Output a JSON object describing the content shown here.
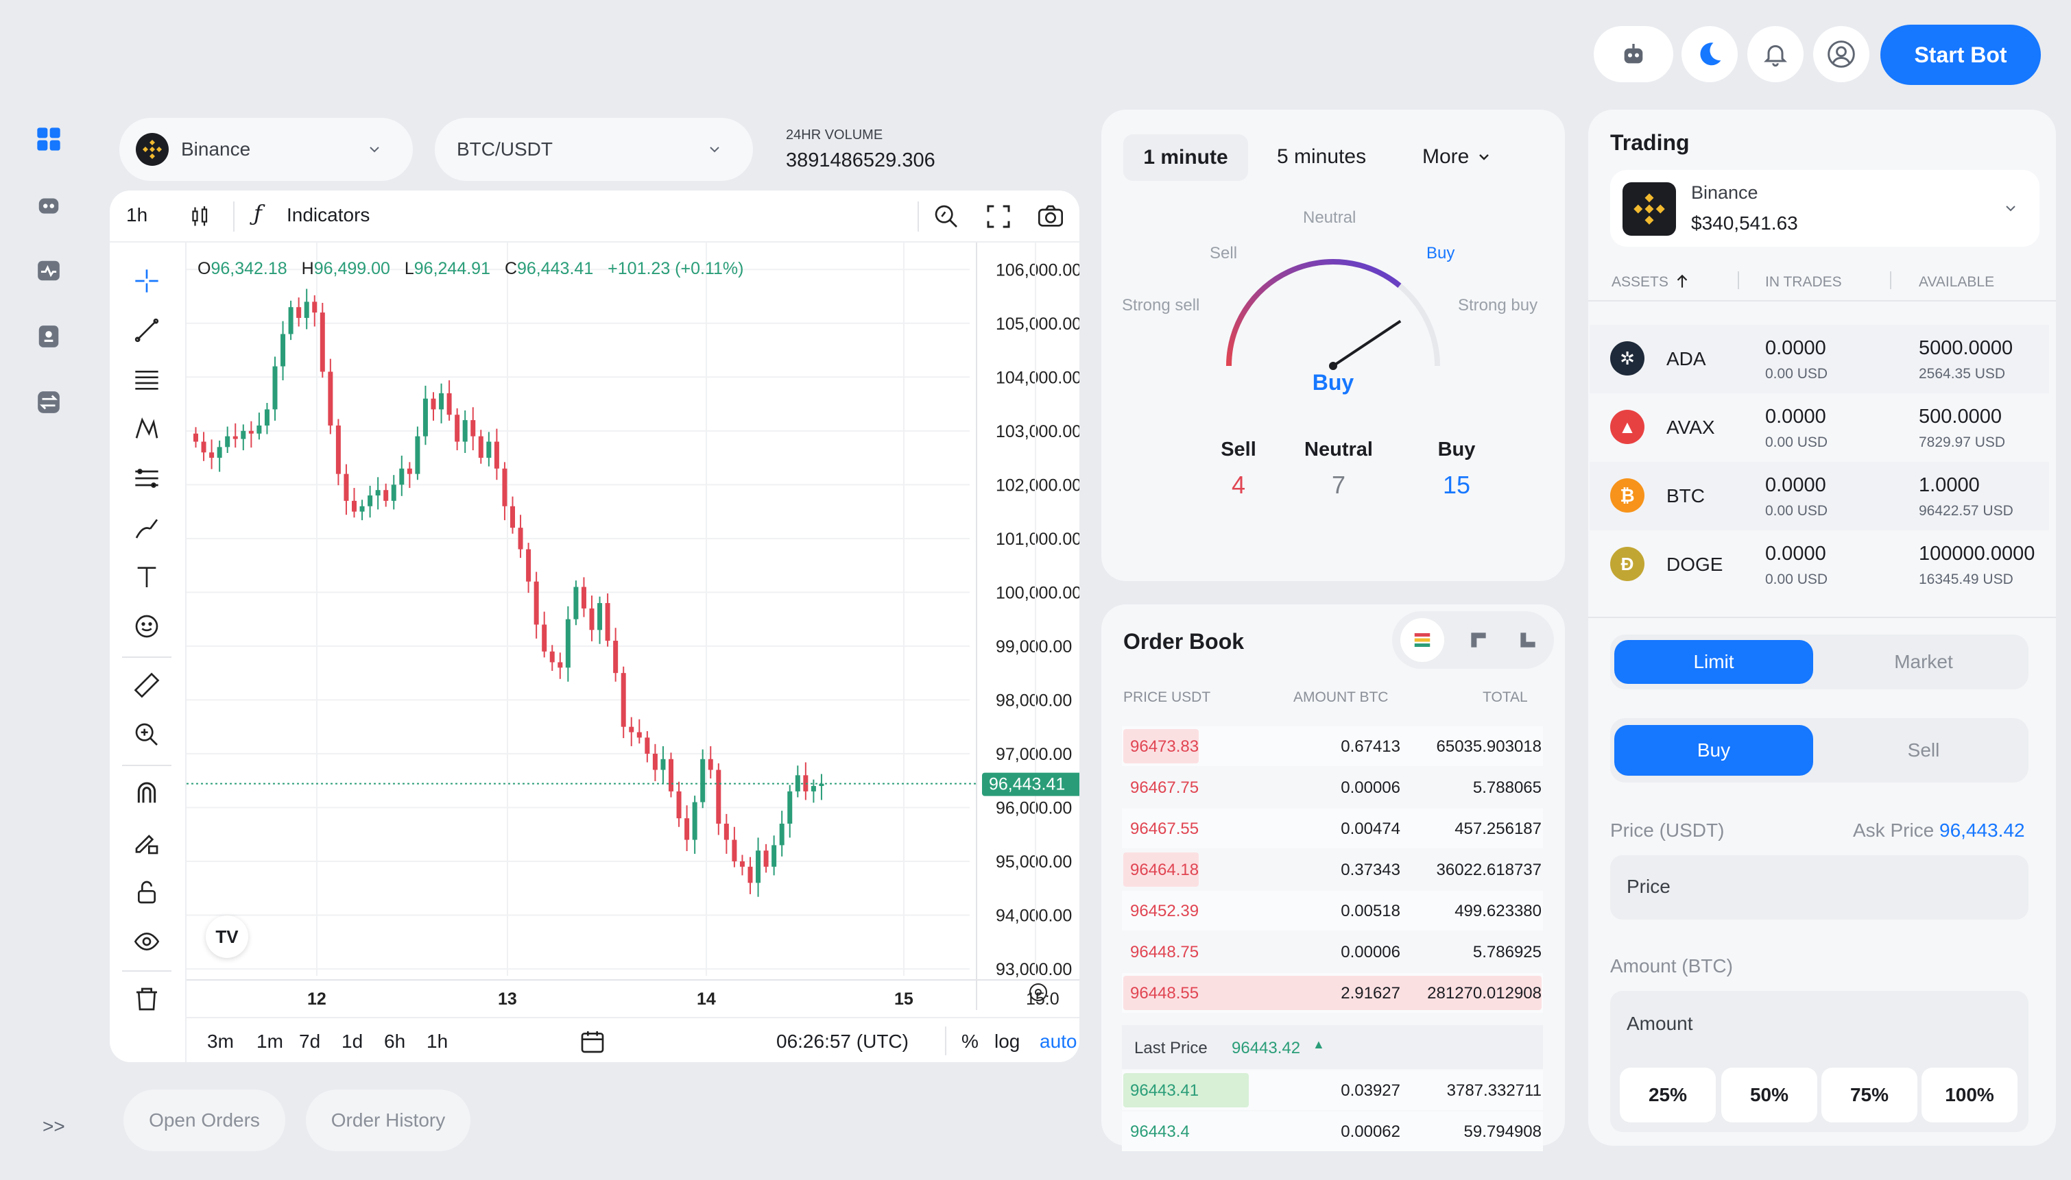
{
  "header": {
    "start_bot_label": "Start Bot",
    "icons": [
      "robot-icon",
      "moon-icon",
      "bell-icon",
      "user-icon"
    ]
  },
  "sidebar": {
    "items": [
      "dashboard-icon",
      "bot-icon",
      "activity-icon",
      "wallet-icon",
      "swap-icon"
    ],
    "expand_label": ">>"
  },
  "market": {
    "exchange": "Binance",
    "pair": "BTC/USDT",
    "volume_label": "24HR VOLUME",
    "volume_value": "3891486529.306"
  },
  "chart_toolbar": {
    "interval": "1h",
    "indicators_label": "Indicators"
  },
  "ohlc": {
    "o_label": "O",
    "o": "96,342.18",
    "h_label": "H",
    "h": "96,499.00",
    "l_label": "L",
    "l": "96,244.91",
    "c_label": "C",
    "c": "96,443.41",
    "change": "+101.23 (+0.11%)"
  },
  "chart_data": {
    "type": "candlestick",
    "ylim": [
      93000,
      106500
    ],
    "y_ticks": [
      "106,000.00",
      "105,000.00",
      "104,000.00",
      "103,000.00",
      "102,000.00",
      "101,000.00",
      "100,000.00",
      "99,000.00",
      "98,000.00",
      "97,000.00",
      "96,000.00",
      "95,000.00",
      "94,000.00",
      "93,000.00"
    ],
    "x_ticks": [
      "12",
      "13",
      "14",
      "15",
      "15:0"
    ],
    "last_price_label": "96,443.41",
    "last_price": 96443.41,
    "up_color": "#2a9d78",
    "down_color": "#e04552",
    "closes": [
      102800,
      102600,
      102500,
      102700,
      102900,
      102850,
      103000,
      102950,
      103100,
      103400,
      104200,
      104800,
      105300,
      105100,
      105400,
      105200,
      104100,
      103100,
      102200,
      101700,
      101500,
      101600,
      101800,
      101900,
      101700,
      102000,
      102300,
      102200,
      102900,
      103600,
      103400,
      103700,
      103300,
      102800,
      103200,
      102900,
      102500,
      102800,
      102300,
      101600,
      101200,
      100800,
      100200,
      99400,
      98900,
      98700,
      98600,
      99500,
      100100,
      99700,
      99300,
      99800,
      99100,
      98500,
      97500,
      97400,
      97300,
      97000,
      96700,
      96900,
      96300,
      95800,
      95400,
      96100,
      96900,
      96700,
      95700,
      95400,
      95000,
      94900,
      94600,
      95200,
      94900,
      95300,
      95700,
      96300,
      96600,
      96300,
      96400,
      96443
    ]
  },
  "chart_bottom": {
    "ranges": [
      "3m",
      "1m",
      "7d",
      "1d",
      "6h",
      "1h"
    ],
    "time": "06:26:57 (UTC)",
    "pct": "%",
    "log": "log",
    "auto": "auto"
  },
  "bottom_tabs": {
    "open_orders": "Open Orders",
    "order_history": "Order History"
  },
  "sentiment": {
    "tabs": [
      "1 minute",
      "5 minutes",
      "More"
    ],
    "gauge_labels": {
      "neutral": "Neutral",
      "sell": "Sell",
      "buy": "Buy",
      "strong_sell": "Strong sell",
      "strong_buy": "Strong buy"
    },
    "result": "Buy",
    "summary": [
      {
        "label": "Sell",
        "value": "4",
        "color": "#e04552"
      },
      {
        "label": "Neutral",
        "value": "7",
        "color": "#7a7f87"
      },
      {
        "label": "Buy",
        "value": "15",
        "color": "#1677ff"
      }
    ],
    "needle_value": 0.8
  },
  "order_book": {
    "title": "Order Book",
    "headers": [
      "PRICE USDT",
      "AMOUNT BTC",
      "TOTAL"
    ],
    "asks": [
      {
        "price": "96473.83",
        "amount": "0.67413",
        "total": "65035.903018",
        "depth": 0.1
      },
      {
        "price": "96467.75",
        "amount": "0.00006",
        "total": "5.788065",
        "depth": 0
      },
      {
        "price": "96467.55",
        "amount": "0.00474",
        "total": "457.256187",
        "depth": 0
      },
      {
        "price": "96464.18",
        "amount": "0.37343",
        "total": "36022.618737",
        "depth": 0.08
      },
      {
        "price": "96452.39",
        "amount": "0.00518",
        "total": "499.623380",
        "depth": 0
      },
      {
        "price": "96448.75",
        "amount": "0.00006",
        "total": "5.786925",
        "depth": 0
      },
      {
        "price": "96448.55",
        "amount": "2.91627",
        "total": "281270.012908",
        "depth": 1
      }
    ],
    "last_price_label": "Last Price",
    "last_price": "96443.42",
    "bids": [
      {
        "price": "96443.41",
        "amount": "0.03927",
        "total": "3787.332711",
        "depth": 0.3
      },
      {
        "price": "96443.4",
        "amount": "0.00062",
        "total": "59.794908",
        "depth": 0
      }
    ]
  },
  "trading": {
    "title": "Trading",
    "account_name": "Binance",
    "account_balance": "$340,541.63",
    "headers": [
      "ASSETS",
      "IN TRADES",
      "AVAILABLE"
    ],
    "assets": [
      {
        "symbol": "ADA",
        "icon": "ada-icon",
        "color": "#1e2a3a",
        "in_trades": "0.0000",
        "in_trades_usd": "0.00 USD",
        "available": "5000.0000",
        "available_usd": "2564.35 USD"
      },
      {
        "symbol": "AVAX",
        "icon": "avax-icon",
        "color": "#e84142",
        "in_trades": "0.0000",
        "in_trades_usd": "0.00 USD",
        "available": "500.0000",
        "available_usd": "7829.97 USD"
      },
      {
        "symbol": "BTC",
        "icon": "btc-icon",
        "color": "#f7931a",
        "in_trades": "0.0000",
        "in_trades_usd": "0.00 USD",
        "available": "1.0000",
        "available_usd": "96422.57 USD"
      },
      {
        "symbol": "DOGE",
        "icon": "doge-icon",
        "color": "#c2a633",
        "in_trades": "0.0000",
        "in_trades_usd": "0.00 USD",
        "available": "100000.0000",
        "available_usd": "16345.49 USD"
      }
    ],
    "order_type": {
      "limit": "Limit",
      "market": "Market"
    },
    "side": {
      "buy": "Buy",
      "sell": "Sell"
    },
    "price_label": "Price (USDT)",
    "ask_price_label": "Ask Price",
    "ask_price": "96,443.42",
    "price_placeholder": "Price",
    "amount_label": "Amount (BTC)",
    "amount_placeholder": "Amount",
    "percentages": [
      "25%",
      "50%",
      "75%",
      "100%"
    ]
  }
}
